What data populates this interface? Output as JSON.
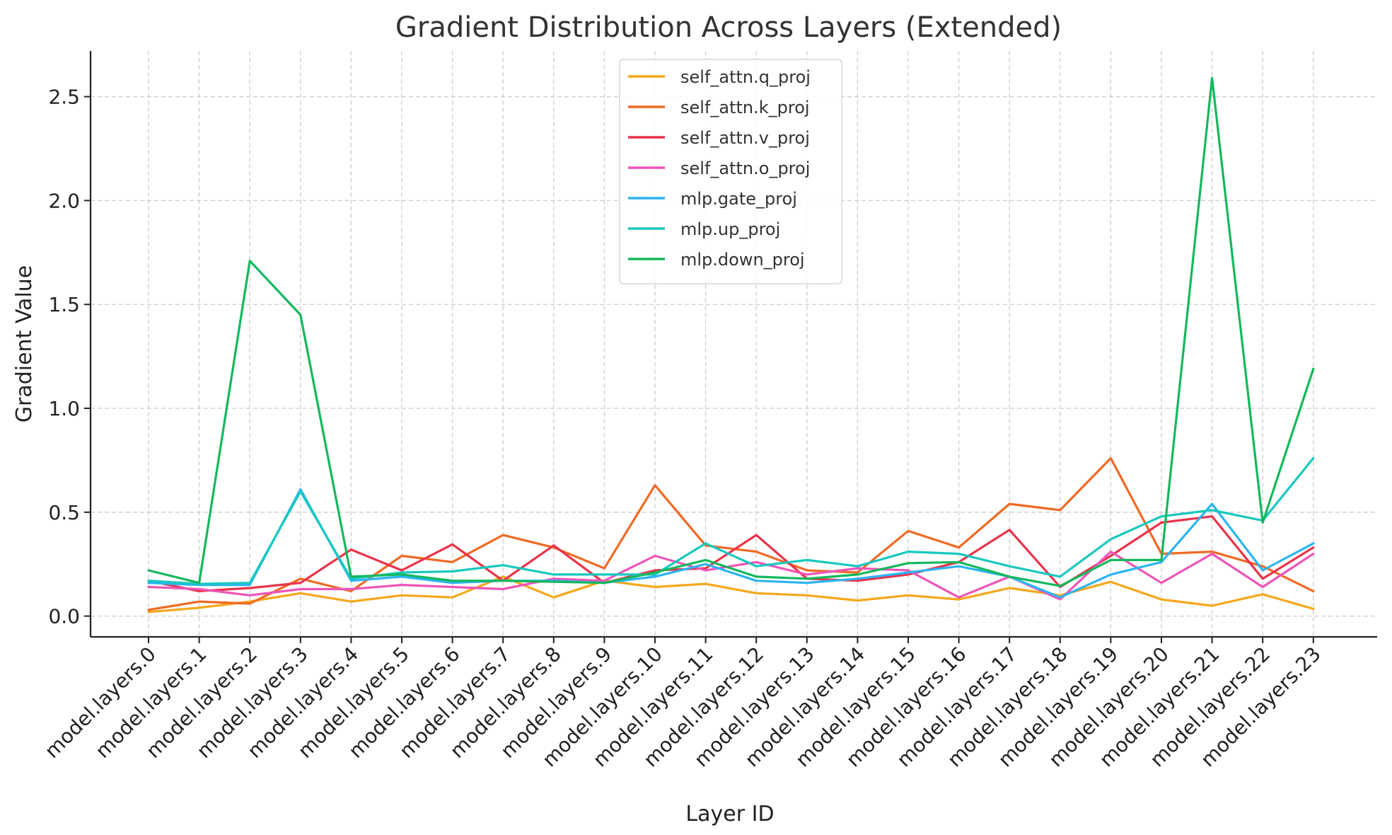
{
  "chart_data": {
    "type": "line",
    "title": "Gradient Distribution Across Layers (Extended)",
    "xlabel": "Layer ID",
    "ylabel": "Gradient Value",
    "ylim": [
      -0.1,
      2.72
    ],
    "yticks": [
      0.0,
      0.5,
      1.0,
      1.5,
      2.0,
      2.5
    ],
    "ytick_labels": [
      "0.0",
      "0.5",
      "1.0",
      "1.5",
      "2.0",
      "2.5"
    ],
    "grid": true,
    "legend_position": "top-center",
    "categories": [
      "model.layers.0",
      "model.layers.1",
      "model.layers.2",
      "model.layers.3",
      "model.layers.4",
      "model.layers.5",
      "model.layers.6",
      "model.layers.7",
      "model.layers.8",
      "model.layers.9",
      "model.layers.10",
      "model.layers.11",
      "model.layers.12",
      "model.layers.13",
      "model.layers.14",
      "model.layers.15",
      "model.layers.16",
      "model.layers.17",
      "model.layers.18",
      "model.layers.19",
      "model.layers.20",
      "model.layers.21",
      "model.layers.22",
      "model.layers.23"
    ],
    "series": [
      {
        "name": "self_attn.q_proj",
        "color": "#f5a81c",
        "values": [
          0.02,
          0.04,
          0.07,
          0.11,
          0.07,
          0.1,
          0.09,
          0.19,
          0.09,
          0.17,
          0.14,
          0.155,
          0.11,
          0.1,
          0.075,
          0.1,
          0.08,
          0.135,
          0.1,
          0.165,
          0.08,
          0.05,
          0.105,
          0.035
        ]
      },
      {
        "name": "self_attn.k_proj",
        "color": "#ef6a24",
        "values": [
          0.03,
          0.07,
          0.06,
          0.18,
          0.12,
          0.29,
          0.26,
          0.39,
          0.33,
          0.23,
          0.63,
          0.34,
          0.31,
          0.22,
          0.21,
          0.41,
          0.33,
          0.54,
          0.51,
          0.76,
          0.3,
          0.31,
          0.24,
          0.12
        ]
      },
      {
        "name": "self_attn.v_proj",
        "color": "#e8334a",
        "values": [
          0.17,
          0.12,
          0.135,
          0.16,
          0.32,
          0.22,
          0.345,
          0.17,
          0.34,
          0.16,
          0.22,
          0.23,
          0.39,
          0.18,
          0.17,
          0.2,
          0.26,
          0.415,
          0.14,
          0.29,
          0.45,
          0.48,
          0.18,
          0.33
        ]
      },
      {
        "name": "self_attn.o_proj",
        "color": "#ee55b8",
        "values": [
          0.14,
          0.13,
          0.1,
          0.13,
          0.13,
          0.15,
          0.14,
          0.13,
          0.18,
          0.17,
          0.29,
          0.22,
          0.26,
          0.2,
          0.23,
          0.22,
          0.09,
          0.19,
          0.08,
          0.31,
          0.16,
          0.3,
          0.14,
          0.3
        ]
      },
      {
        "name": "mlp.gate_proj",
        "color": "#2bb5f2",
        "values": [
          0.16,
          0.15,
          0.15,
          0.61,
          0.17,
          0.19,
          0.16,
          0.17,
          0.17,
          0.16,
          0.19,
          0.25,
          0.17,
          0.16,
          0.18,
          0.21,
          0.24,
          0.19,
          0.09,
          0.2,
          0.26,
          0.54,
          0.22,
          0.35
        ]
      },
      {
        "name": "mlp.up_proj",
        "color": "#19c8bf",
        "values": [
          0.17,
          0.155,
          0.16,
          0.6,
          0.18,
          0.21,
          0.215,
          0.245,
          0.2,
          0.2,
          0.2,
          0.35,
          0.24,
          0.27,
          0.24,
          0.31,
          0.3,
          0.24,
          0.19,
          0.37,
          0.48,
          0.51,
          0.46,
          0.76
        ]
      },
      {
        "name": "mlp.down_proj",
        "color": "#14b85c",
        "values": [
          0.22,
          0.16,
          1.71,
          1.45,
          0.19,
          0.2,
          0.17,
          0.17,
          0.165,
          0.16,
          0.21,
          0.27,
          0.19,
          0.18,
          0.2,
          0.255,
          0.26,
          0.19,
          0.145,
          0.27,
          0.27,
          2.59,
          0.45,
          1.19
        ]
      }
    ]
  }
}
